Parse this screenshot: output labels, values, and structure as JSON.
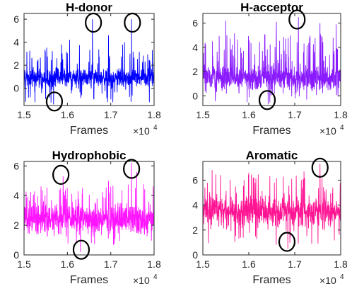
{
  "chart_data": [
    {
      "type": "line",
      "title": "H-donor",
      "xlabel": "Frames",
      "x_exponent_base": "×10",
      "x_exponent_power": "4",
      "xlim": [
        1.5,
        1.8
      ],
      "ylim": [
        -1.5,
        6.5
      ],
      "xticks": [
        "1.5",
        "1.6",
        "1.7",
        "1.8"
      ],
      "yticks": [
        "0",
        "2",
        "4",
        "6"
      ],
      "color": "#0000ff",
      "series": [
        {
          "baseline": 0.9,
          "noise": 0.55,
          "spike_rate": 0.06,
          "spike_max": 3.8,
          "dip_rate": 0.04,
          "dip_min": -1.3,
          "peaks": [
            [
              1.658,
              6.0
            ],
            [
              1.748,
              6.0
            ],
            [
              1.568,
              -1.4
            ],
            [
              1.695,
              4.6
            ],
            [
              1.605,
              4.2
            ],
            [
              1.732,
              4.0
            ]
          ]
        }
      ],
      "circled_points": [
        [
          1.66,
          5.7
        ],
        [
          1.75,
          5.7
        ],
        [
          1.57,
          -1.15
        ]
      ]
    },
    {
      "type": "line",
      "title": "H-acceptor",
      "xlabel": "Frames",
      "x_exponent_base": "×10",
      "x_exponent_power": "4",
      "xlim": [
        1.5,
        1.8
      ],
      "ylim": [
        -0.8,
        6.8
      ],
      "xticks": [
        "1.5",
        "1.6",
        "1.7",
        "1.8"
      ],
      "yticks": [
        "0",
        "2",
        "4",
        "6"
      ],
      "color": "#8a1bff",
      "series": [
        {
          "baseline": 1.5,
          "noise": 0.7,
          "spike_rate": 0.09,
          "spike_max": 5.2,
          "dip_rate": 0.03,
          "dip_min": -0.6,
          "peaks": [
            [
              1.708,
              6.5
            ],
            [
              1.642,
              -0.7
            ],
            [
              1.55,
              6.2
            ],
            [
              1.66,
              6.1
            ],
            [
              1.755,
              6.0
            ],
            [
              1.79,
              5.9
            ]
          ]
        }
      ],
      "circled_points": [
        [
          1.705,
          6.3
        ],
        [
          1.64,
          -0.35
        ]
      ]
    },
    {
      "type": "line",
      "title": "Hydrophobic",
      "xlabel": "Frames",
      "x_exponent_base": "×10",
      "x_exponent_power": "4",
      "xlim": [
        1.5,
        1.8
      ],
      "ylim": [
        0,
        6.3
      ],
      "xticks": [
        "1.5",
        "1.6",
        "1.7",
        "1.8"
      ],
      "yticks": [
        "0",
        "2",
        "4",
        "6"
      ],
      "color": "#ff14ff",
      "series": [
        {
          "baseline": 2.4,
          "noise": 0.65,
          "spike_rate": 0.07,
          "spike_max": 4.8,
          "dip_rate": 0.03,
          "dip_min": 0.6,
          "peaks": [
            [
              1.59,
              5.3
            ],
            [
              1.748,
              6.2
            ],
            [
              1.63,
              0.2
            ],
            [
              1.76,
              5.6
            ],
            [
              1.695,
              5.0
            ]
          ]
        }
      ],
      "circled_points": [
        [
          1.585,
          5.4
        ],
        [
          1.748,
          5.8
        ],
        [
          1.632,
          0.35
        ]
      ]
    },
    {
      "type": "line",
      "title": "Aromatic",
      "xlabel": "Frames",
      "x_exponent_base": "×10",
      "x_exponent_power": "4",
      "xlim": [
        1.5,
        1.8
      ],
      "ylim": [
        0,
        7.5
      ],
      "xticks": [
        "1.5",
        "1.6",
        "1.7",
        "1.8"
      ],
      "yticks": [
        "0",
        "2",
        "4",
        "6"
      ],
      "color": "#ff1493",
      "series": [
        {
          "baseline": 3.5,
          "noise": 0.8,
          "spike_rate": 0.08,
          "spike_max": 6.5,
          "dip_rate": 0.05,
          "dip_min": 0.8,
          "peaks": [
            [
              1.755,
              7.3
            ],
            [
              1.685,
              0.5
            ],
            [
              1.6,
              6.6
            ],
            [
              1.52,
              6.8
            ],
            [
              1.72,
              6.7
            ]
          ]
        }
      ],
      "circled_points": [
        [
          1.755,
          7.0
        ],
        [
          1.683,
          1.05
        ]
      ]
    }
  ]
}
